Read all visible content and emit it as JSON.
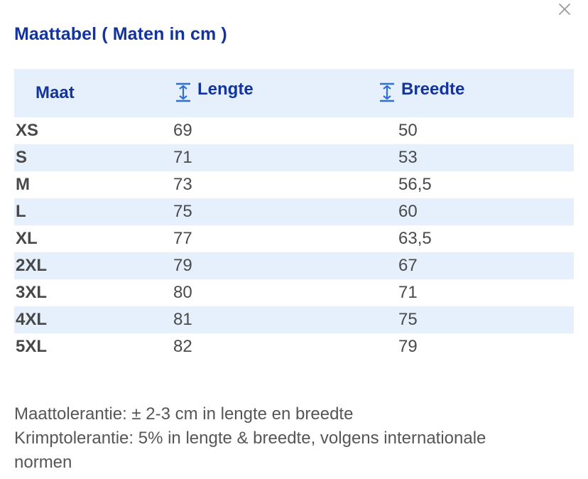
{
  "dialog": {
    "title": "Maattabel ( Maten in cm )",
    "close_icon": "close-icon"
  },
  "table": {
    "headers": {
      "size": "Maat",
      "length": "Lengte",
      "width": "Breedte",
      "length_icon": "vertical-measure-icon",
      "width_icon": "vertical-measure-icon"
    },
    "rows": [
      {
        "size": "XS",
        "length": "69",
        "width": "50"
      },
      {
        "size": "S",
        "length": "71",
        "width": "53"
      },
      {
        "size": "M",
        "length": "73",
        "width": "56,5"
      },
      {
        "size": "L",
        "length": "75",
        "width": "60"
      },
      {
        "size": "XL",
        "length": "77",
        "width": "63,5"
      },
      {
        "size": "2XL",
        "length": "79",
        "width": "67"
      },
      {
        "size": "3XL",
        "length": "80",
        "width": "71"
      },
      {
        "size": "4XL",
        "length": "81",
        "width": "75"
      },
      {
        "size": "5XL",
        "length": "82",
        "width": "79"
      }
    ]
  },
  "notes": {
    "tolerance": "Maattolerantie: ± 2-3 cm in lengte en breedte",
    "shrinkage": "Krimptolerantie: 5% in lengte & breedte, volgens internationale normen"
  },
  "colors": {
    "accent": "#13349c",
    "header_bg": "#e6f0fc",
    "stripe_bg": "#e6f0fc",
    "text": "#4a4a4a",
    "icon_blue": "#2f6fd6"
  }
}
